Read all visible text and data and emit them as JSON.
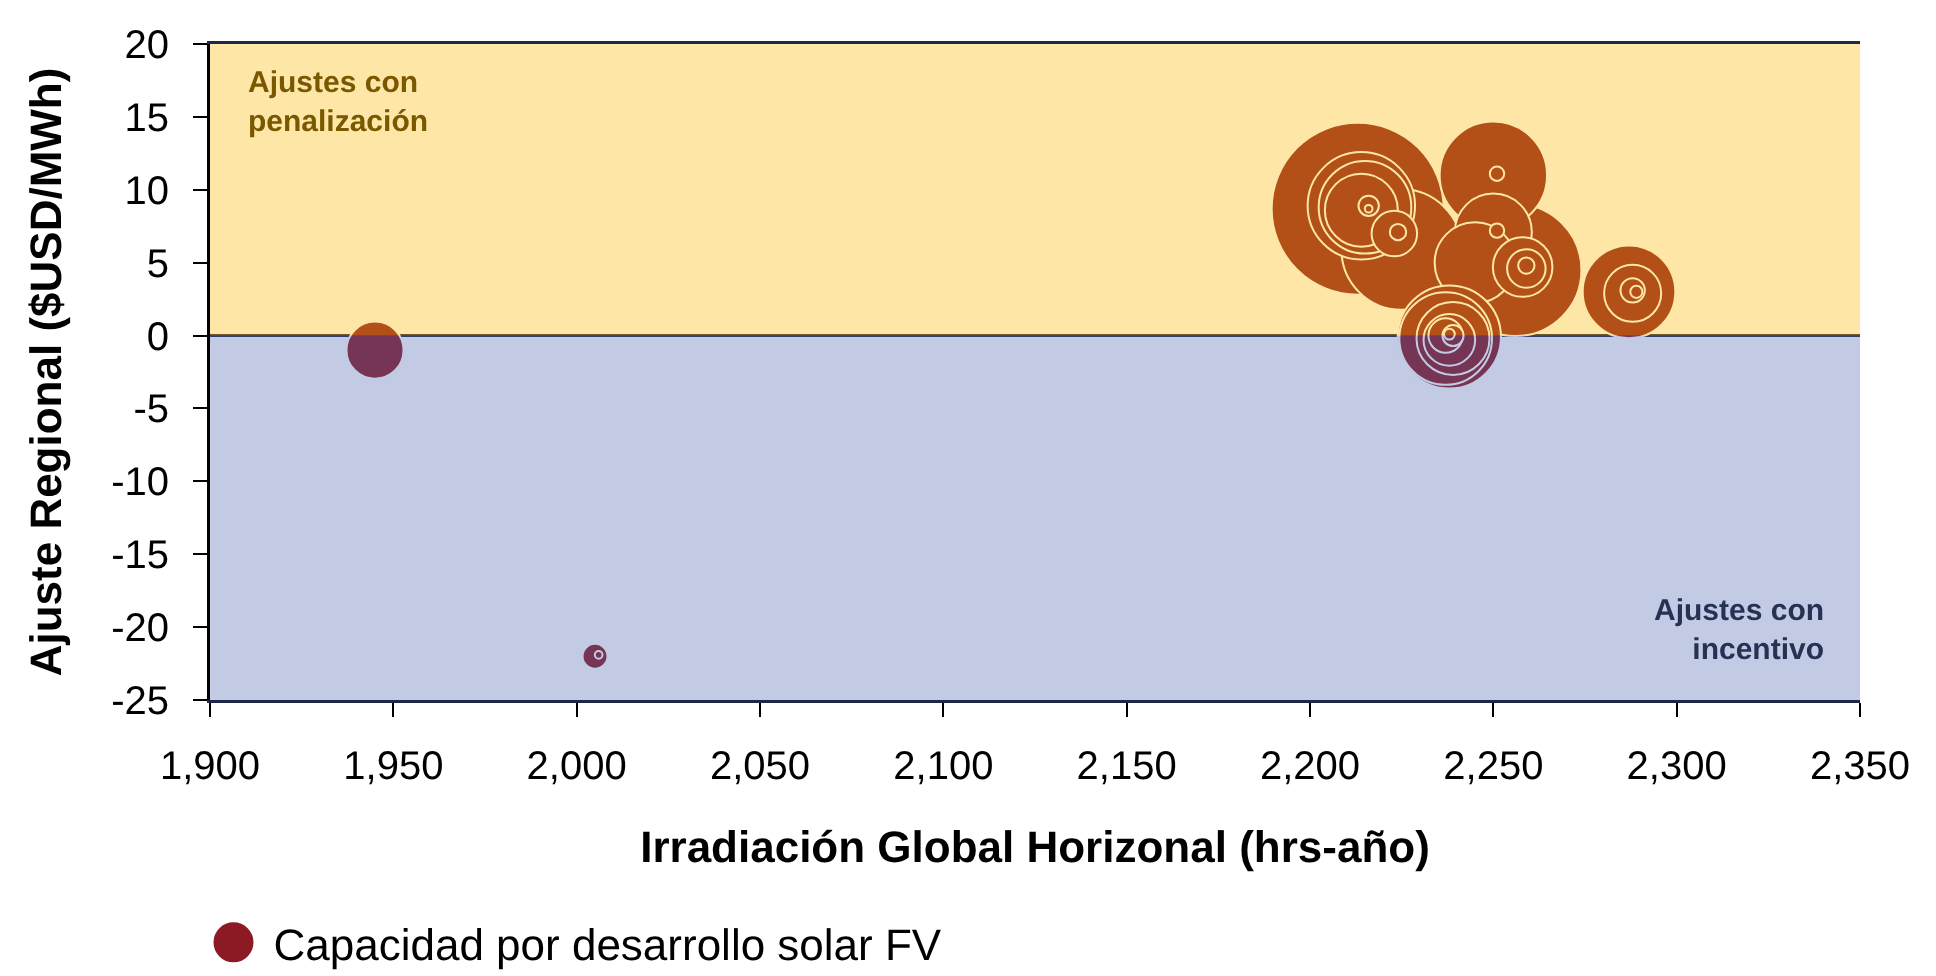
{
  "chart_data": {
    "type": "bubble",
    "xlabel": "Irradiación Global Horizonal (hrs-año)",
    "ylabel": "Ajuste Regional ($USD/MWh)",
    "series": [
      {
        "name": "Capacidad por desarrollo solar FV",
        "color": "#8b1a24",
        "x": [
          2213,
          2256,
          2225,
          2250,
          2214,
          2215,
          2214,
          2223,
          2250,
          2245,
          2258,
          2259,
          2287,
          2288,
          2288,
          2289,
          2238,
          2237,
          2239,
          2238,
          2237,
          2239,
          2238,
          1945,
          2005,
          2006,
          2216,
          2216,
          2224,
          2251,
          2251,
          2259
        ],
        "values": [
          8.7,
          4.5,
          5.9,
          11,
          8.9,
          8.8,
          8.6,
          7,
          7.1,
          5,
          4.7,
          4.6,
          3,
          2.9,
          3.1,
          3,
          -0.1,
          -0.2,
          -0.2,
          -0.3,
          0,
          0,
          0.1,
          -1,
          -22,
          -21.9,
          8.9,
          8.7,
          7.1,
          11.1,
          7.2,
          4.8
        ],
        "sizes": [
          1,
          0.59,
          0.49,
          0.39,
          0.39,
          0.29,
          0.18,
          0.07,
          0.2,
          0.22,
          0.12,
          0.05,
          0.29,
          0.11,
          0.02,
          0.005,
          0.36,
          0.29,
          0.18,
          0.09,
          0.04,
          0.015,
          0.004,
          0.11,
          0.021,
          0.002,
          0.014,
          0.002,
          0.009,
          0.007,
          0.007,
          0.009
        ]
      }
    ],
    "xlim": [
      1900,
      2350
    ],
    "xticks": [
      {
        "value": 1900,
        "label": "1,900"
      },
      {
        "value": 1950,
        "label": "1,950"
      },
      {
        "value": 2000,
        "label": "2,000"
      },
      {
        "value": 2050,
        "label": "2,050"
      },
      {
        "value": 2100,
        "label": "2,100"
      },
      {
        "value": 2150,
        "label": "2,150"
      },
      {
        "value": 2200,
        "label": "2,200"
      },
      {
        "value": 2250,
        "label": "2,250"
      },
      {
        "value": 2300,
        "label": "2,300"
      },
      {
        "value": 2350,
        "label": "2,350"
      }
    ],
    "ylim": [
      -25,
      20
    ],
    "yticks": [
      -25,
      -20,
      -15,
      -10,
      -5,
      0,
      5,
      10,
      15,
      20
    ],
    "bands": [
      {
        "axis": "y",
        "from": 0,
        "to": 20,
        "label": "Ajustes con\npenalización",
        "color": "#fcb800"
      },
      {
        "axis": "y",
        "from": -25,
        "to": 0,
        "label": "Ajustes con\nincentivo",
        "color": "#5069ae"
      }
    ],
    "ref_lines": [
      {
        "axis": "y",
        "value": 0,
        "color": "#1f2747"
      }
    ],
    "legend": "bottom left",
    "grid": false,
    "marker": "circle"
  }
}
